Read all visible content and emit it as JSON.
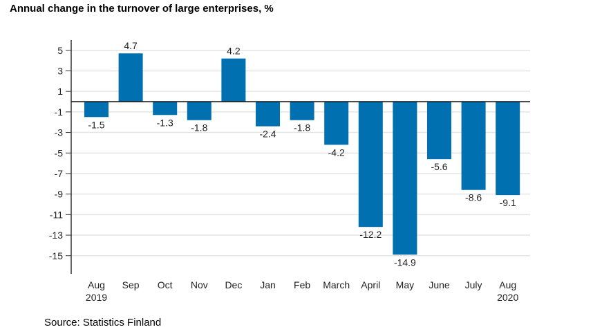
{
  "chart_data": {
    "type": "bar",
    "title": "Annual change in the turnover of large enterprises, %",
    "categories": [
      "Aug\n2019",
      "Sep",
      "Oct",
      "Nov",
      "Dec",
      "Jan",
      "Feb",
      "March",
      "April",
      "May",
      "June",
      "July",
      "Aug\n2020"
    ],
    "values": [
      -1.5,
      4.7,
      -1.3,
      -1.8,
      4.2,
      -2.4,
      -1.8,
      -4.2,
      -12.2,
      -14.9,
      -5.6,
      -8.6,
      -9.1
    ],
    "yticks": [
      5,
      3,
      1,
      -1,
      -3,
      -5,
      -7,
      -9,
      -11,
      -13,
      -15
    ],
    "ylim": [
      -16.5,
      6
    ],
    "grid": true,
    "bar_color": "#0070b0",
    "source": "Source: Statistics Finland"
  }
}
